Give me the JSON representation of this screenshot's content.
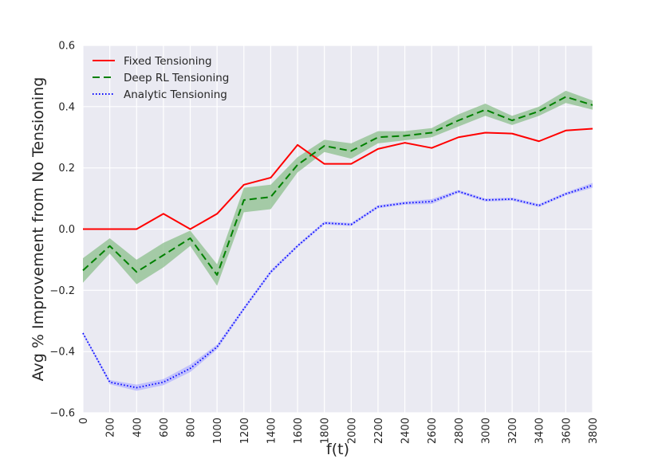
{
  "chart_data": {
    "type": "line",
    "title": "",
    "xlabel": "f(t)",
    "ylabel": "Avg % Improvement from No Tensioning",
    "xlim": [
      0,
      3800
    ],
    "ylim": [
      -0.6,
      0.6
    ],
    "x": [
      0,
      200,
      400,
      600,
      800,
      1000,
      1200,
      1400,
      1600,
      1800,
      2000,
      2200,
      2400,
      2600,
      2800,
      3000,
      3200,
      3400,
      3600,
      3800
    ],
    "x_tick_labels": [
      "0",
      "200",
      "400",
      "600",
      "800",
      "1000",
      "1200",
      "1400",
      "1600",
      "1800",
      "2000",
      "2200",
      "2400",
      "2600",
      "2800",
      "3000",
      "3200",
      "3400",
      "3600",
      "3800"
    ],
    "y_ticks": [
      -0.6,
      -0.4,
      -0.2,
      0.0,
      0.2,
      0.4,
      0.6
    ],
    "y_tick_labels": [
      "−0.6",
      "−0.4",
      "−0.2",
      "0.0",
      "0.2",
      "0.4",
      "0.6"
    ],
    "legend_position": "top-left",
    "grid": true,
    "background": "#eaeaf2",
    "series": [
      {
        "name": "Fixed Tensioning",
        "color": "#ff0000",
        "style": "solid",
        "values": [
          0.0,
          0.0,
          0.0,
          0.05,
          0.0,
          0.05,
          0.145,
          0.168,
          0.275,
          0.213,
          0.213,
          0.262,
          0.282,
          0.265,
          0.3,
          0.315,
          0.312,
          0.287,
          0.322,
          0.328
        ]
      },
      {
        "name": "Deep RL Tensioning",
        "color": "#008000",
        "band_color": "#8cbf8c",
        "style": "dashed",
        "values": [
          -0.135,
          -0.055,
          -0.14,
          -0.085,
          -0.03,
          -0.15,
          0.095,
          0.105,
          0.21,
          0.272,
          0.255,
          0.3,
          0.305,
          0.315,
          0.355,
          0.39,
          0.355,
          0.385,
          0.432,
          0.405
        ],
        "band_half_width": [
          0.04,
          0.025,
          0.04,
          0.04,
          0.025,
          0.035,
          0.04,
          0.04,
          0.025,
          0.02,
          0.025,
          0.02,
          0.015,
          0.015,
          0.02,
          0.02,
          0.015,
          0.015,
          0.02,
          0.015
        ]
      },
      {
        "name": "Analytic Tensioning",
        "color": "#0000ff",
        "band_color": "#b3b3ff",
        "style": "dotted",
        "values": [
          -0.34,
          -0.5,
          -0.518,
          -0.5,
          -0.455,
          -0.385,
          -0.26,
          -0.14,
          -0.055,
          0.02,
          0.015,
          0.073,
          0.085,
          0.09,
          0.123,
          0.095,
          0.098,
          0.077,
          0.115,
          0.143
        ],
        "band_half_width": [
          0.005,
          0.007,
          0.01,
          0.01,
          0.012,
          0.008,
          0.006,
          0.006,
          0.005,
          0.005,
          0.005,
          0.005,
          0.005,
          0.008,
          0.005,
          0.005,
          0.005,
          0.005,
          0.005,
          0.008
        ]
      }
    ]
  }
}
